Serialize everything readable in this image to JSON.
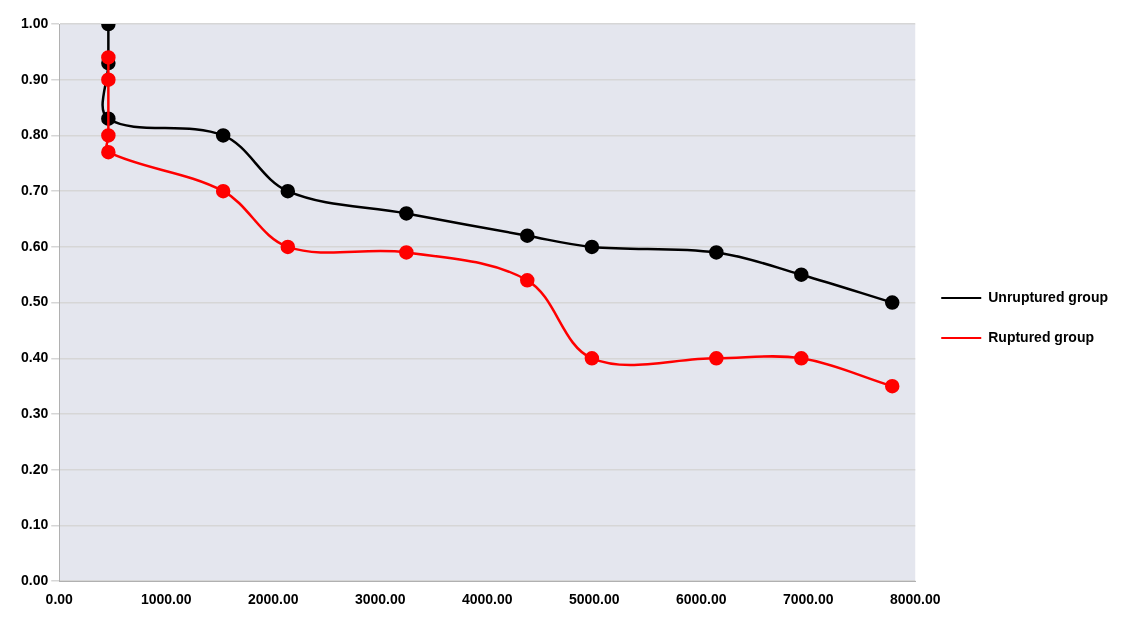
{
  "chart_data": {
    "type": "line",
    "series": [
      {
        "name": "Unruptured group",
        "color": "#000000",
        "x": [
          459,
          459,
          459,
          1532,
          2136,
          3244,
          4374,
          4978,
          6141,
          6935,
          7785
        ],
        "values": [
          1.0,
          0.93,
          0.83,
          0.8,
          0.7,
          0.66,
          0.62,
          0.6,
          0.59,
          0.55,
          0.5
        ]
      },
      {
        "name": "Ruptured group",
        "color": "#ff0000",
        "x": [
          459,
          459,
          459,
          459,
          1532,
          2136,
          3244,
          4374,
          4978,
          6141,
          6935,
          7785
        ],
        "values": [
          0.94,
          0.9,
          0.8,
          0.77,
          0.7,
          0.6,
          0.59,
          0.54,
          0.4,
          0.4,
          0.4,
          0.35
        ]
      }
    ],
    "xlim": [
      0,
      8000
    ],
    "xticks": [
      {
        "value": 0,
        "label": "0.00"
      },
      {
        "value": 1000,
        "label": "1000.00"
      },
      {
        "value": 2000,
        "label": "2000.00"
      },
      {
        "value": 3000,
        "label": "3000.00"
      },
      {
        "value": 4000,
        "label": "4000.00"
      },
      {
        "value": 5000,
        "label": "5000.00"
      },
      {
        "value": 6000,
        "label": "6000.00"
      },
      {
        "value": 7000,
        "label": "7000.00"
      },
      {
        "value": 8000,
        "label": "8000.00"
      }
    ],
    "ylim": [
      0,
      1
    ],
    "yticks": [
      {
        "value": 0,
        "label": "0.00"
      },
      {
        "value": 0.1,
        "label": "0.10"
      },
      {
        "value": 0.2,
        "label": "0.20"
      },
      {
        "value": 0.3,
        "label": "0.30"
      },
      {
        "value": 0.4,
        "label": "0.40"
      },
      {
        "value": 0.5,
        "label": "0.50"
      },
      {
        "value": 0.6,
        "label": "0.60"
      },
      {
        "value": 0.7,
        "label": "0.70"
      },
      {
        "value": 0.8,
        "label": "0.80"
      },
      {
        "value": 0.9,
        "label": "0.90"
      },
      {
        "value": 1,
        "label": "1.00"
      }
    ],
    "grid": "y",
    "legend": "right",
    "marker": "circle",
    "line_style": "solid"
  }
}
